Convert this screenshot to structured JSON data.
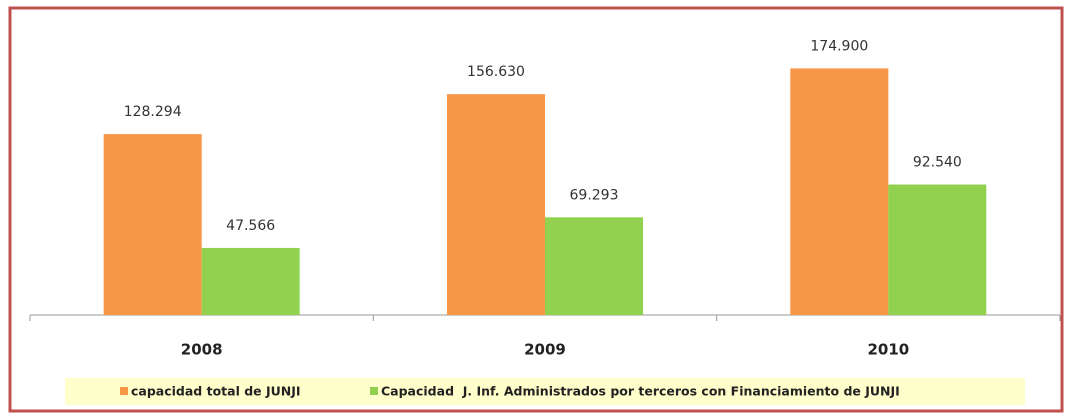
{
  "chart_data": {
    "type": "bar",
    "categories": [
      "2008",
      "2009",
      "2010"
    ],
    "series": [
      {
        "name": "capacidad total de JUNJI",
        "color": "#f79646",
        "values": [
          128294,
          156630,
          174900
        ],
        "value_labels": [
          "128.294",
          "156.630",
          "174.900"
        ]
      },
      {
        "name": "Capacidad  J. Inf. Administrados por terceros con Financiamiento de JUNJI",
        "color": "#92d050",
        "values": [
          47566,
          69293,
          92540
        ],
        "value_labels": [
          "47.566",
          "69.293",
          "92.540"
        ]
      }
    ],
    "ylim": [
      0,
      200000
    ]
  }
}
